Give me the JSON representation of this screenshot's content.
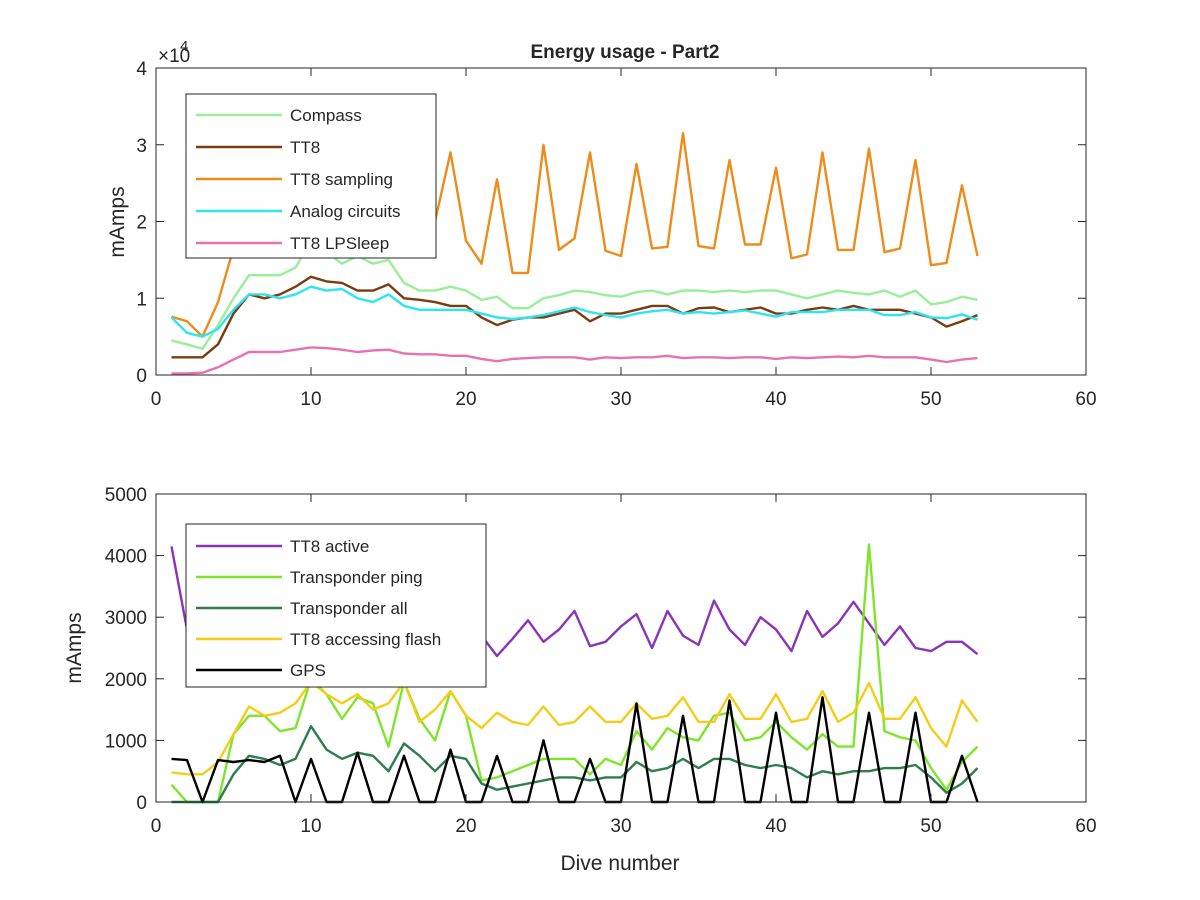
{
  "chart_data": [
    {
      "type": "line",
      "title": "Energy usage - Part2",
      "xlabel": "",
      "ylabel": "mAmps",
      "xlim": [
        0,
        60
      ],
      "ylim": [
        0,
        40000
      ],
      "xticks": [
        0,
        10,
        20,
        30,
        40,
        50,
        60
      ],
      "xtick_labels": [
        "0",
        "10",
        "20",
        "30",
        "40",
        "50",
        "60"
      ],
      "yticks": [
        0,
        10000,
        20000,
        30000,
        40000
      ],
      "ytick_labels": [
        "0",
        "1",
        "2",
        "3",
        "4"
      ],
      "y_multiplier": "×10",
      "y_multiplier_exp": "4",
      "grid": false,
      "legend_position": "top-left",
      "x": [
        1,
        2,
        3,
        4,
        5,
        6,
        7,
        8,
        9,
        10,
        11,
        12,
        13,
        14,
        15,
        16,
        17,
        18,
        19,
        20,
        21,
        22,
        23,
        24,
        25,
        26,
        27,
        28,
        29,
        30,
        31,
        32,
        33,
        34,
        35,
        36,
        37,
        38,
        39,
        40,
        41,
        42,
        43,
        44,
        45,
        46,
        47,
        48,
        49,
        50,
        51,
        52,
        53
      ],
      "series": [
        {
          "name": "Compass",
          "color": "#99ee99",
          "values": [
            4500,
            4000,
            3400,
            6500,
            10000,
            13000,
            13000,
            13000,
            14000,
            17500,
            16000,
            14500,
            15500,
            14500,
            15000,
            12000,
            11000,
            11000,
            11500,
            11000,
            9800,
            10200,
            8700,
            8700,
            10000,
            10400,
            11000,
            10800,
            10400,
            10200,
            10800,
            11000,
            10500,
            11000,
            11000,
            10800,
            11000,
            10800,
            11000,
            11000,
            10500,
            10000,
            10500,
            11000,
            10700,
            10500,
            11000,
            10200,
            11000,
            9200,
            9500,
            10200,
            9800
          ]
        },
        {
          "name": "TT8",
          "color": "#7a3b10",
          "values": [
            2300,
            2300,
            2300,
            4000,
            8000,
            10500,
            10000,
            10500,
            11500,
            12800,
            12200,
            12000,
            11000,
            11000,
            11800,
            10000,
            9800,
            9500,
            9000,
            9000,
            7500,
            6500,
            7200,
            7500,
            7500,
            8000,
            8500,
            7000,
            8000,
            8000,
            8500,
            9000,
            9000,
            8000,
            8700,
            8800,
            8200,
            8500,
            8800,
            8000,
            8000,
            8500,
            8800,
            8500,
            9000,
            8500,
            8500,
            8500,
            8000,
            7500,
            6300,
            7000,
            7800
          ]
        },
        {
          "name": "TT8 sampling",
          "color": "#ee8c1a",
          "values": [
            7600,
            7000,
            5000,
            9500,
            16500,
            19000,
            22000,
            23000,
            24000,
            27000,
            28000,
            26500,
            26000,
            25500,
            26000,
            22000,
            17500,
            20000,
            29000,
            17500,
            14500,
            25500,
            13300,
            13300,
            30000,
            16300,
            17800,
            29000,
            16200,
            15500,
            27500,
            16500,
            16700,
            31500,
            16800,
            16500,
            28000,
            17000,
            17000,
            27000,
            15200,
            15700,
            29000,
            16300,
            16300,
            29500,
            16000,
            16500,
            28000,
            14300,
            14600,
            24700,
            15500
          ]
        },
        {
          "name": "Analog circuits",
          "color": "#2ee5ee",
          "values": [
            7500,
            5500,
            5000,
            6000,
            8500,
            10500,
            10500,
            10000,
            10500,
            11500,
            11000,
            11200,
            10000,
            9500,
            10500,
            9000,
            8500,
            8500,
            8500,
            8500,
            8000,
            7500,
            7300,
            7500,
            7800,
            8300,
            8800,
            8200,
            7800,
            7500,
            8000,
            8300,
            8500,
            8000,
            8200,
            8000,
            8200,
            8400,
            8000,
            7600,
            8200,
            8200,
            8200,
            8500,
            8500,
            8500,
            7800,
            7800,
            8200,
            7500,
            7400,
            7900,
            7200
          ]
        },
        {
          "name": "TT8 LPSleep",
          "color": "#e872b1",
          "values": [
            200,
            200,
            300,
            1000,
            2000,
            3000,
            3000,
            3000,
            3300,
            3600,
            3500,
            3300,
            3000,
            3200,
            3300,
            2800,
            2700,
            2700,
            2500,
            2500,
            2100,
            1800,
            2100,
            2200,
            2300,
            2300,
            2300,
            2000,
            2300,
            2200,
            2300,
            2300,
            2500,
            2200,
            2300,
            2300,
            2200,
            2300,
            2300,
            2100,
            2300,
            2200,
            2300,
            2400,
            2300,
            2500,
            2300,
            2300,
            2300,
            2000,
            1700,
            2000,
            2200
          ]
        }
      ]
    },
    {
      "type": "line",
      "title": "",
      "xlabel": "Dive number",
      "ylabel": "mAmps",
      "xlim": [
        0,
        60
      ],
      "ylim": [
        0,
        5000
      ],
      "xticks": [
        0,
        10,
        20,
        30,
        40,
        50,
        60
      ],
      "xtick_labels": [
        "0",
        "10",
        "20",
        "30",
        "40",
        "50",
        "60"
      ],
      "yticks": [
        0,
        1000,
        2000,
        3000,
        4000,
        5000
      ],
      "ytick_labels": [
        "0",
        "1000",
        "2000",
        "3000",
        "4000",
        "5000"
      ],
      "grid": false,
      "legend_position": "top-left",
      "x": [
        1,
        2,
        3,
        4,
        5,
        6,
        7,
        8,
        9,
        10,
        11,
        12,
        13,
        14,
        15,
        16,
        17,
        18,
        19,
        20,
        21,
        22,
        23,
        24,
        25,
        26,
        27,
        28,
        29,
        30,
        31,
        32,
        33,
        34,
        35,
        36,
        37,
        38,
        39,
        40,
        41,
        42,
        43,
        44,
        45,
        46,
        47,
        48,
        49,
        50,
        51,
        52,
        53
      ],
      "series": [
        {
          "name": "TT8 active",
          "color": "#8a35b5",
          "values": [
            4150,
            2800,
            2700,
            2900,
            3000,
            2900,
            2800,
            2700,
            2850,
            2900,
            2900,
            2800,
            2700,
            2800,
            2750,
            2850,
            2800,
            2600,
            2900,
            2950,
            2700,
            2370,
            2650,
            2950,
            2600,
            2800,
            3100,
            2530,
            2600,
            2850,
            3050,
            2500,
            3100,
            2700,
            2550,
            3270,
            2800,
            2550,
            3000,
            2800,
            2450,
            3100,
            2680,
            2900,
            3250,
            2900,
            2550,
            2850,
            2500,
            2450,
            2600,
            2600,
            2400
          ]
        },
        {
          "name": "Transponder ping",
          "color": "#7ee52a",
          "values": [
            280,
            0,
            0,
            0,
            1100,
            1400,
            1400,
            1150,
            1200,
            2000,
            1750,
            1350,
            1700,
            1600,
            900,
            1950,
            1350,
            1000,
            1800,
            1400,
            350,
            400,
            500,
            600,
            700,
            700,
            700,
            450,
            700,
            600,
            1150,
            850,
            1200,
            1050,
            1000,
            1400,
            1450,
            1000,
            1050,
            1300,
            1050,
            850,
            1100,
            900,
            900,
            4180,
            1150,
            1050,
            1000,
            550,
            200,
            650,
            900
          ]
        },
        {
          "name": "Transponder all",
          "color": "#2e7d4f",
          "values": [
            0,
            0,
            0,
            0,
            450,
            750,
            700,
            600,
            700,
            1230,
            850,
            700,
            800,
            750,
            500,
            950,
            750,
            500,
            750,
            700,
            300,
            200,
            250,
            300,
            350,
            400,
            400,
            350,
            400,
            400,
            650,
            500,
            550,
            700,
            550,
            700,
            700,
            600,
            550,
            600,
            550,
            400,
            500,
            450,
            500,
            500,
            550,
            550,
            600,
            400,
            150,
            300,
            550
          ]
        },
        {
          "name": "TT8 accessing flash",
          "color": "#f5cc1a",
          "values": [
            480,
            450,
            450,
            650,
            1100,
            1550,
            1400,
            1450,
            1600,
            1950,
            1750,
            1600,
            1750,
            1500,
            1600,
            1950,
            1300,
            1500,
            1800,
            1400,
            1200,
            1450,
            1300,
            1250,
            1550,
            1250,
            1300,
            1550,
            1300,
            1300,
            1600,
            1350,
            1400,
            1700,
            1300,
            1300,
            1750,
            1350,
            1350,
            1750,
            1300,
            1350,
            1800,
            1300,
            1450,
            1930,
            1350,
            1350,
            1700,
            1200,
            900,
            1650,
            1300
          ]
        },
        {
          "name": "GPS",
          "color": "#000000",
          "values": [
            700,
            680,
            0,
            680,
            650,
            680,
            650,
            750,
            0,
            700,
            0,
            0,
            800,
            0,
            0,
            750,
            0,
            0,
            850,
            0,
            0,
            750,
            0,
            0,
            1000,
            0,
            0,
            700,
            0,
            0,
            1600,
            0,
            0,
            1400,
            0,
            0,
            1650,
            0,
            0,
            1450,
            0,
            0,
            1700,
            0,
            0,
            1450,
            0,
            0,
            1450,
            0,
            0,
            750,
            0
          ]
        }
      ]
    }
  ]
}
